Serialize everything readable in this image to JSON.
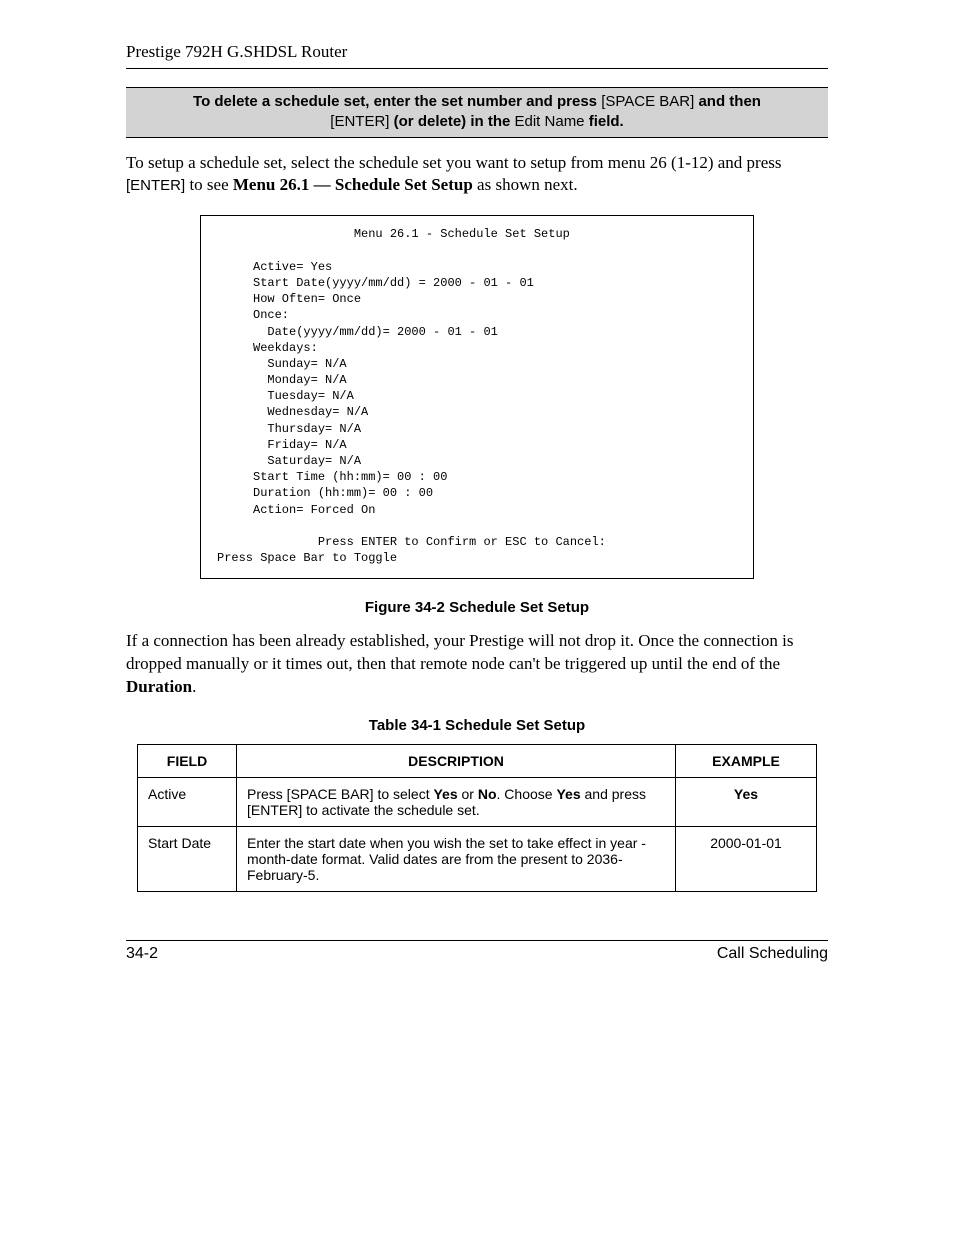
{
  "header": {
    "title": "Prestige 792H G.SHDSL Router"
  },
  "notice": {
    "line1_a": "To delete a schedule set, enter the set number and press ",
    "line1_b": "[SPACE BAR]",
    "line1_c": " and then",
    "line2_a": "[ENTER]",
    "line2_b": " (or delete) in the ",
    "line2_c": "Edit Name",
    "line2_d": " field."
  },
  "intro": {
    "pre": " To setup a schedule set, select the schedule set you want to setup from menu 26 (1-12) and press ",
    "enter": "[ENTER]",
    "mid": " to see ",
    "menu": "Menu 26.1 — Schedule Set Setup",
    "post": " as shown next."
  },
  "terminal": {
    "title": "                   Menu 26.1 - Schedule Set Setup",
    "l1": "     Active= Yes",
    "l2": "     Start Date(yyyy/mm/dd) = 2000 - 01 - 01",
    "l3": "     How Often= Once",
    "l4": "     Once:",
    "l5": "       Date(yyyy/mm/dd)= 2000 - 01 - 01",
    "l6": "     Weekdays:",
    "l7": "       Sunday= N/A",
    "l8": "       Monday= N/A",
    "l9": "       Tuesday= N/A",
    "l10": "       Wednesday= N/A",
    "l11": "       Thursday= N/A",
    "l12": "       Friday= N/A",
    "l13": "       Saturday= N/A",
    "l14": "     Start Time (hh:mm)= 00 : 00",
    "l15": "     Duration (hh:mm)= 00 : 00",
    "l16": "     Action= Forced On",
    "l17": "",
    "l18": "              Press ENTER to Confirm or ESC to Cancel:",
    "l19": "Press Space Bar to Toggle"
  },
  "figure_caption": "Figure 34-2 Schedule Set Setup",
  "after_fig": {
    "pre": "If a connection has been already established, your Prestige will not drop it. Once the connection is dropped manually or it times out, then that remote node can't be triggered up until the end of the ",
    "dur": "Duration",
    "post": "."
  },
  "table_caption": "Table 34-1 Schedule Set Setup",
  "table": {
    "headers": {
      "field": "FIELD",
      "description": "DESCRIPTION",
      "example": "EXAMPLE"
    },
    "rows": [
      {
        "field": "Active",
        "desc_parts": {
          "a": "Press [SPACE BAR] to select ",
          "b": "Yes",
          "c": " or ",
          "d": "No",
          "e": ". Choose ",
          "f": "Yes",
          "g": " and press [ENTER] to activate the schedule set."
        },
        "example": "Yes",
        "example_bold": true
      },
      {
        "field": "Start Date",
        "desc_parts": {
          "a": "Enter the start date when you wish the set to take effect in year - month-date format. Valid dates are from the present to 2036-February-5.",
          "b": "",
          "c": "",
          "d": "",
          "e": "",
          "f": "",
          "g": ""
        },
        "example": "2000-01-01",
        "example_bold": false
      }
    ]
  },
  "footer": {
    "left": "34-2",
    "right": "Call Scheduling"
  }
}
